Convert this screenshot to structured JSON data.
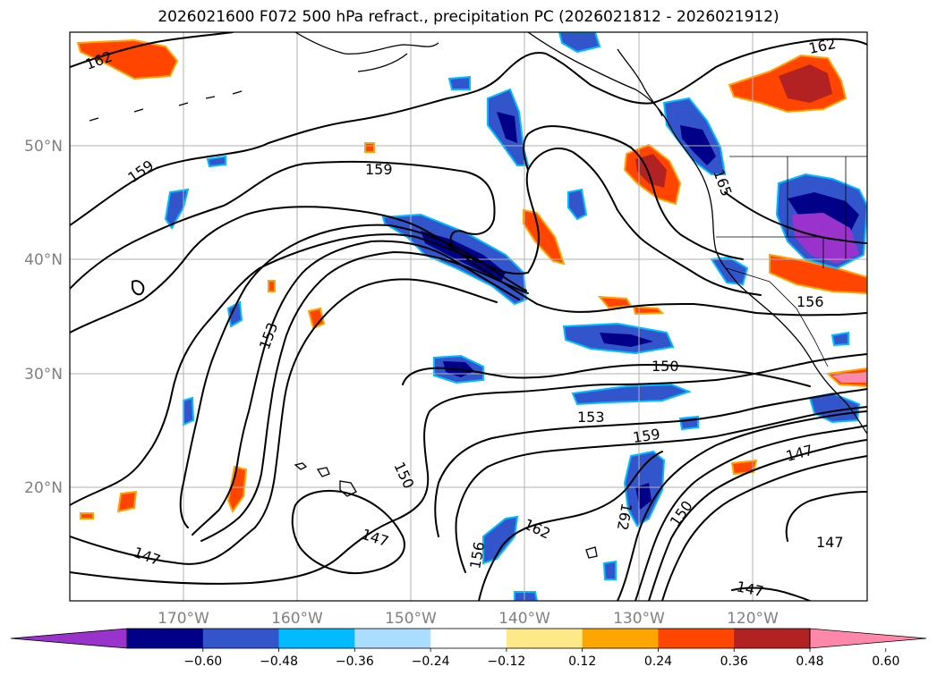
{
  "title": "2026021600 F072 500 hPa refract., precipitation PC (2026021812 - 2026021912)",
  "map": {
    "lon_labels": [
      "170°W",
      "160°W",
      "150°W",
      "140°W",
      "130°W",
      "120°W"
    ],
    "lat_labels": [
      "50°N",
      "40°N",
      "30°N",
      "20°N"
    ],
    "contour_labels": [
      "162",
      "159",
      "159",
      "153",
      "150",
      "153",
      "159",
      "150",
      "147",
      "147",
      "156",
      "162",
      "162",
      "150",
      "147",
      "147",
      "147",
      "156",
      "162",
      "165"
    ]
  },
  "colorbar": {
    "tick_labels": [
      "−0.60",
      "−0.48",
      "−0.36",
      "−0.24",
      "−0.12",
      "0.12",
      "0.24",
      "0.36",
      "0.48",
      "0.60"
    ],
    "colors": [
      "#9933cc",
      "#000088",
      "#3355cc",
      "#00bbff",
      "#aaddff",
      "#ffffff",
      "#ffe888",
      "#ffa500",
      "#ff4500",
      "#b22222",
      "#ff88aa"
    ]
  }
}
